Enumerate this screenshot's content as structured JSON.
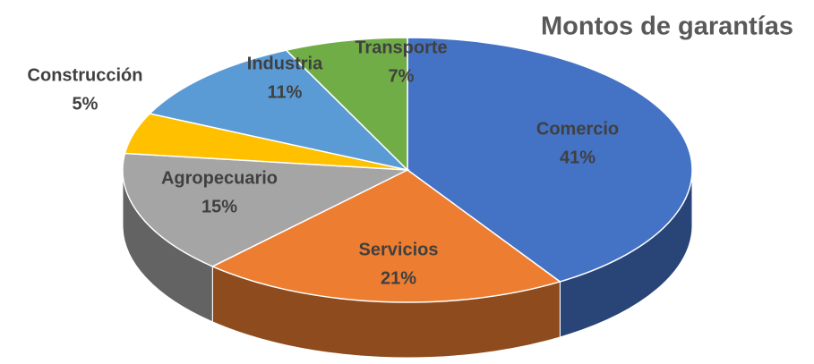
{
  "chart_data": {
    "type": "pie",
    "title": "Montos de garantías",
    "categories": [
      "Comercio",
      "Servicios",
      "Agropecuario",
      "Construcción",
      "Industria",
      "Transporte"
    ],
    "values": [
      41,
      21,
      15,
      5,
      11,
      7
    ],
    "value_labels": [
      "41%",
      "21%",
      "15%",
      "5%",
      "11%",
      "7%"
    ],
    "colors": [
      "#4472c4",
      "#ed7d31",
      "#a5a5a5",
      "#ffc000",
      "#5b9bd5",
      "#70ad47"
    ]
  }
}
